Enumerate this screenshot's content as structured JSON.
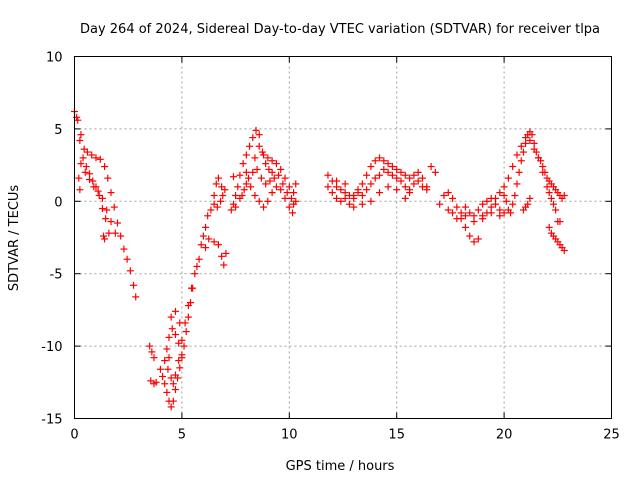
{
  "chart_data": {
    "type": "scatter",
    "title": "Day 264 of 2024, Sidereal Day-to-day VTEC variation (SDTVAR) for receiver tlpa",
    "xlabel": "GPS time / hours",
    "ylabel": "SDTVAR / TECUs",
    "xlim": [
      0,
      25
    ],
    "ylim": [
      -15,
      10
    ],
    "xticks": [
      "0",
      "5",
      "10",
      "15",
      "20",
      "25"
    ],
    "yticks": [
      "-15",
      "-10",
      "-5",
      "0",
      "5",
      "10"
    ],
    "grid": true,
    "marker": "+",
    "series": [
      {
        "name": "SDTVAR",
        "color": "#ff0000",
        "points": [
          [
            0.0,
            6.2
          ],
          [
            0.15,
            5.6
          ],
          [
            0.3,
            4.6
          ],
          [
            0.45,
            3.6
          ],
          [
            0.6,
            3.4
          ],
          [
            0.8,
            3.2
          ],
          [
            1.0,
            3.0
          ],
          [
            1.2,
            2.9
          ],
          [
            1.4,
            2.4
          ],
          [
            1.55,
            1.6
          ],
          [
            1.7,
            0.6
          ],
          [
            1.85,
            -0.4
          ],
          [
            2.0,
            -1.5
          ],
          [
            2.15,
            -2.4
          ],
          [
            2.3,
            -3.3
          ],
          [
            2.45,
            -4.0
          ],
          [
            2.6,
            -4.8
          ],
          [
            2.75,
            -5.8
          ],
          [
            2.85,
            -6.6
          ],
          [
            0.1,
            5.8
          ],
          [
            0.25,
            4.2
          ],
          [
            0.4,
            3.0
          ],
          [
            0.55,
            2.4
          ],
          [
            0.7,
            1.9
          ],
          [
            0.85,
            1.4
          ],
          [
            1.0,
            1.0
          ],
          [
            1.15,
            0.4
          ],
          [
            1.3,
            -0.5
          ],
          [
            1.45,
            -1.2
          ],
          [
            1.6,
            -2.2
          ],
          [
            0.3,
            2.6
          ],
          [
            0.5,
            2.0
          ],
          [
            0.7,
            1.5
          ],
          [
            0.9,
            1.0
          ],
          [
            1.1,
            0.7
          ],
          [
            1.3,
            0.2
          ],
          [
            1.5,
            -0.6
          ],
          [
            1.7,
            -1.4
          ],
          [
            1.9,
            -2.2
          ],
          [
            0.2,
            1.6
          ],
          [
            0.25,
            0.8
          ],
          [
            1.35,
            -2.4
          ],
          [
            1.4,
            -2.6
          ],
          [
            3.5,
            -10.0
          ],
          [
            3.6,
            -10.4
          ],
          [
            3.7,
            -10.8
          ],
          [
            3.55,
            -12.4
          ],
          [
            3.7,
            -12.6
          ],
          [
            3.8,
            -12.5
          ],
          [
            4.0,
            -11.6
          ],
          [
            4.1,
            -12.1
          ],
          [
            4.2,
            -12.6
          ],
          [
            4.3,
            -13.2
          ],
          [
            4.4,
            -13.8
          ],
          [
            4.5,
            -14.2
          ],
          [
            4.6,
            -13.8
          ],
          [
            4.7,
            -13.0
          ],
          [
            4.8,
            -12.2
          ],
          [
            4.9,
            -11.5
          ],
          [
            5.0,
            -10.8
          ],
          [
            5.1,
            -10.0
          ],
          [
            5.2,
            -9.0
          ],
          [
            5.3,
            -8.0
          ],
          [
            5.4,
            -7.0
          ],
          [
            5.5,
            -6.0
          ],
          [
            5.6,
            -5.0
          ],
          [
            5.7,
            -4.5
          ],
          [
            4.2,
            -11.0
          ],
          [
            4.35,
            -11.6
          ],
          [
            4.5,
            -12.2
          ],
          [
            4.6,
            -12.6
          ],
          [
            4.7,
            -12.0
          ],
          [
            4.85,
            -11.0
          ],
          [
            5.0,
            -9.6
          ],
          [
            5.15,
            -8.4
          ],
          [
            5.3,
            -7.2
          ],
          [
            5.45,
            -6.0
          ],
          [
            4.4,
            -9.4
          ],
          [
            4.55,
            -8.8
          ],
          [
            4.7,
            -9.2
          ],
          [
            4.85,
            -9.8
          ],
          [
            5.0,
            -10.6
          ],
          [
            4.5,
            -8.0
          ],
          [
            4.7,
            -7.6
          ],
          [
            4.9,
            -8.4
          ],
          [
            4.3,
            -10.2
          ],
          [
            4.4,
            -10.8
          ],
          [
            5.8,
            -4.0
          ],
          [
            5.9,
            -3.0
          ],
          [
            6.0,
            -2.4
          ],
          [
            6.1,
            -1.8
          ],
          [
            6.2,
            -1.0
          ],
          [
            6.35,
            -0.6
          ],
          [
            6.5,
            -0.2
          ],
          [
            6.65,
            -0.4
          ],
          [
            6.8,
            0.0
          ],
          [
            6.9,
            0.4
          ],
          [
            6.1,
            -3.2
          ],
          [
            6.25,
            -2.6
          ],
          [
            6.5,
            -2.8
          ],
          [
            6.7,
            -3.0
          ],
          [
            6.85,
            -3.8
          ],
          [
            6.95,
            -4.4
          ],
          [
            7.05,
            -3.6
          ],
          [
            6.5,
            0.4
          ],
          [
            6.6,
            1.2
          ],
          [
            6.7,
            1.6
          ],
          [
            6.85,
            1.0
          ],
          [
            7.0,
            0.8
          ],
          [
            7.3,
            -0.6
          ],
          [
            7.4,
            -0.2
          ],
          [
            7.5,
            0.4
          ],
          [
            7.6,
            1.0
          ],
          [
            7.7,
            1.8
          ],
          [
            7.85,
            2.6
          ],
          [
            8.0,
            3.2
          ],
          [
            8.15,
            3.8
          ],
          [
            8.3,
            4.4
          ],
          [
            8.45,
            4.9
          ],
          [
            8.6,
            4.6
          ],
          [
            8.75,
            3.4
          ],
          [
            8.9,
            2.6
          ],
          [
            9.05,
            2.2
          ],
          [
            9.2,
            2.0
          ],
          [
            7.5,
            -0.4
          ],
          [
            7.7,
            0.2
          ],
          [
            7.9,
            0.8
          ],
          [
            8.1,
            1.6
          ],
          [
            8.3,
            2.0
          ],
          [
            8.5,
            2.2
          ],
          [
            8.7,
            1.6
          ],
          [
            8.9,
            1.2
          ],
          [
            9.1,
            1.4
          ],
          [
            9.3,
            1.6
          ],
          [
            9.5,
            1.8
          ],
          [
            9.7,
            1.2
          ],
          [
            9.9,
            0.6
          ],
          [
            10.1,
            0.2
          ],
          [
            10.2,
            -0.2
          ],
          [
            10.3,
            0.0
          ],
          [
            7.8,
            0.4
          ],
          [
            8.0,
            1.2
          ],
          [
            8.2,
            1.0
          ],
          [
            8.4,
            0.4
          ],
          [
            8.6,
            0.0
          ],
          [
            8.8,
            -0.4
          ],
          [
            9.0,
            0.0
          ],
          [
            9.2,
            0.6
          ],
          [
            9.4,
            1.0
          ],
          [
            9.6,
            0.8
          ],
          [
            9.8,
            0.2
          ],
          [
            10.0,
            -0.4
          ],
          [
            10.15,
            -0.8
          ],
          [
            8.4,
            3.0
          ],
          [
            8.6,
            3.8
          ],
          [
            8.8,
            3.2
          ],
          [
            9.0,
            3.0
          ],
          [
            9.2,
            2.8
          ],
          [
            9.4,
            2.6
          ],
          [
            9.6,
            2.2
          ],
          [
            9.8,
            1.6
          ],
          [
            10.0,
            1.0
          ],
          [
            10.2,
            0.6
          ],
          [
            10.3,
            1.2
          ],
          [
            7.4,
            1.7
          ],
          [
            8.0,
            2.0
          ],
          [
            11.8,
            1.8
          ],
          [
            12.0,
            1.4
          ],
          [
            12.2,
            1.0
          ],
          [
            12.4,
            0.8
          ],
          [
            12.6,
            0.6
          ],
          [
            12.8,
            0.4
          ],
          [
            13.0,
            0.4
          ],
          [
            13.2,
            0.8
          ],
          [
            13.4,
            1.2
          ],
          [
            13.6,
            1.8
          ],
          [
            13.8,
            2.4
          ],
          [
            14.0,
            2.8
          ],
          [
            14.2,
            3.0
          ],
          [
            14.4,
            2.8
          ],
          [
            14.6,
            2.6
          ],
          [
            14.8,
            2.4
          ],
          [
            15.0,
            2.2
          ],
          [
            15.2,
            2.0
          ],
          [
            15.4,
            1.8
          ],
          [
            15.6,
            1.6
          ],
          [
            15.8,
            1.8
          ],
          [
            16.0,
            2.0
          ],
          [
            16.2,
            1.6
          ],
          [
            16.4,
            1.0
          ],
          [
            16.6,
            2.4
          ],
          [
            16.8,
            2.0
          ],
          [
            11.8,
            1.0
          ],
          [
            12.0,
            0.6
          ],
          [
            12.2,
            0.2
          ],
          [
            12.4,
            0.0
          ],
          [
            12.6,
            0.2
          ],
          [
            12.8,
            -0.2
          ],
          [
            13.0,
            0.2
          ],
          [
            13.2,
            0.6
          ],
          [
            13.4,
            0.4
          ],
          [
            13.6,
            0.8
          ],
          [
            13.8,
            1.2
          ],
          [
            14.0,
            1.6
          ],
          [
            14.2,
            1.8
          ],
          [
            14.4,
            2.2
          ],
          [
            14.6,
            2.0
          ],
          [
            14.8,
            1.8
          ],
          [
            15.0,
            1.6
          ],
          [
            15.2,
            1.4
          ],
          [
            15.4,
            1.0
          ],
          [
            15.6,
            0.8
          ],
          [
            15.8,
            1.2
          ],
          [
            16.0,
            1.4
          ],
          [
            16.2,
            1.0
          ],
          [
            16.4,
            0.8
          ],
          [
            12.2,
            1.4
          ],
          [
            12.6,
            1.2
          ],
          [
            13.0,
            -0.4
          ],
          [
            13.4,
            -0.2
          ],
          [
            13.8,
            0.0
          ],
          [
            14.2,
            0.6
          ],
          [
            14.6,
            1.0
          ],
          [
            15.0,
            0.8
          ],
          [
            15.4,
            0.2
          ],
          [
            15.6,
            0.6
          ],
          [
            17.0,
            -0.2
          ],
          [
            17.2,
            0.4
          ],
          [
            17.4,
            0.6
          ],
          [
            17.6,
            0.2
          ],
          [
            17.8,
            -0.4
          ],
          [
            18.0,
            -1.2
          ],
          [
            18.2,
            -1.8
          ],
          [
            18.4,
            -2.4
          ],
          [
            18.6,
            -2.8
          ],
          [
            18.8,
            -2.6
          ],
          [
            19.0,
            -1.0
          ],
          [
            19.2,
            -0.8
          ],
          [
            19.4,
            -0.4
          ],
          [
            19.6,
            0.2
          ],
          [
            19.8,
            0.6
          ],
          [
            20.0,
            0.4
          ],
          [
            17.4,
            -0.6
          ],
          [
            17.6,
            -0.8
          ],
          [
            17.8,
            -1.2
          ],
          [
            18.0,
            -0.8
          ],
          [
            18.2,
            -0.4
          ],
          [
            18.4,
            -0.8
          ],
          [
            18.6,
            -1.0
          ],
          [
            18.8,
            -0.6
          ],
          [
            19.0,
            -0.2
          ],
          [
            19.2,
            0.0
          ],
          [
            19.4,
            0.2
          ],
          [
            19.6,
            -0.2
          ],
          [
            19.8,
            -0.6
          ],
          [
            20.0,
            -0.8
          ],
          [
            18.2,
            -1.0
          ],
          [
            18.6,
            -1.4
          ],
          [
            19.0,
            -1.2
          ],
          [
            19.4,
            -0.8
          ],
          [
            19.8,
            -1.0
          ],
          [
            20.0,
            1.0
          ],
          [
            20.1,
            0.0
          ],
          [
            20.2,
            -0.6
          ],
          [
            20.3,
            -0.8
          ],
          [
            20.4,
            -0.2
          ],
          [
            20.5,
            0.4
          ],
          [
            20.6,
            1.2
          ],
          [
            20.7,
            2.0
          ],
          [
            20.8,
            2.8
          ],
          [
            20.9,
            3.4
          ],
          [
            21.0,
            4.0
          ],
          [
            21.1,
            4.6
          ],
          [
            21.2,
            4.8
          ],
          [
            21.3,
            4.6
          ],
          [
            21.4,
            4.0
          ],
          [
            21.5,
            3.4
          ],
          [
            21.6,
            3.0
          ],
          [
            21.7,
            2.8
          ],
          [
            21.8,
            2.4
          ],
          [
            21.9,
            2.0
          ],
          [
            22.0,
            1.6
          ],
          [
            22.1,
            1.4
          ],
          [
            22.2,
            1.2
          ],
          [
            22.3,
            1.0
          ],
          [
            22.4,
            0.8
          ],
          [
            22.5,
            0.6
          ],
          [
            22.6,
            0.4
          ],
          [
            22.7,
            0.2
          ],
          [
            22.8,
            0.4
          ],
          [
            20.2,
            1.6
          ],
          [
            20.4,
            2.4
          ],
          [
            20.6,
            3.2
          ],
          [
            20.8,
            3.8
          ],
          [
            21.0,
            4.4
          ],
          [
            21.2,
            4.2
          ],
          [
            21.4,
            3.6
          ],
          [
            21.6,
            3.0
          ],
          [
            21.8,
            2.0
          ],
          [
            22.0,
            1.0
          ],
          [
            22.1,
            0.6
          ],
          [
            22.2,
            0.2
          ],
          [
            22.3,
            -0.2
          ],
          [
            22.4,
            -0.6
          ],
          [
            22.5,
            -1.4
          ],
          [
            22.6,
            -1.4
          ],
          [
            20.9,
            -0.6
          ],
          [
            21.0,
            -0.4
          ],
          [
            21.1,
            -0.2
          ],
          [
            21.2,
            0.2
          ],
          [
            22.1,
            -1.8
          ],
          [
            22.2,
            -2.2
          ],
          [
            22.3,
            -2.4
          ],
          [
            22.4,
            -2.6
          ],
          [
            22.5,
            -2.8
          ],
          [
            22.6,
            -3.0
          ],
          [
            22.7,
            -3.2
          ],
          [
            22.8,
            -3.4
          ]
        ]
      }
    ]
  }
}
